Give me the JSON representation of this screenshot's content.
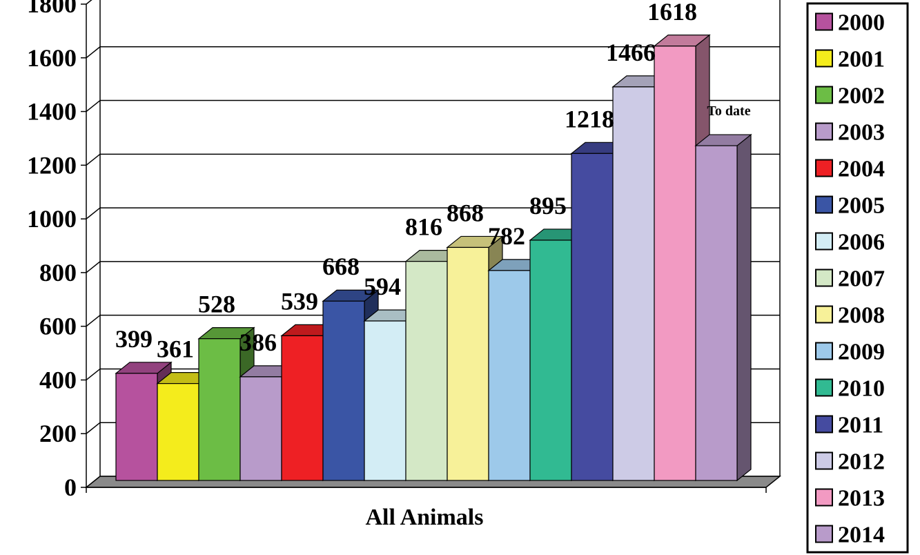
{
  "chart_data": {
    "type": "bar",
    "xlabel": "All Animals",
    "ylabel": "",
    "ylim": [
      0,
      1800
    ],
    "yticks": [
      0,
      200,
      400,
      600,
      800,
      1000,
      1200,
      1400,
      1600,
      1800
    ],
    "grid": true,
    "legend_position": "right",
    "categories": [
      "All Animals"
    ],
    "series": [
      {
        "name": "2000",
        "value": 399,
        "label": "399",
        "color": "#B6529E"
      },
      {
        "name": "2001",
        "value": 361,
        "label": "361",
        "color": "#F4EC1C"
      },
      {
        "name": "2002",
        "value": 528,
        "label": "528",
        "color": "#6CBD45"
      },
      {
        "name": "2003",
        "value": 386,
        "label": "386",
        "color": "#B89BCA"
      },
      {
        "name": "2004",
        "value": 539,
        "label": "539",
        "color": "#EE2024"
      },
      {
        "name": "2005",
        "value": 668,
        "label": "668",
        "color": "#3A55A5"
      },
      {
        "name": "2006",
        "value": 594,
        "label": "594",
        "color": "#D3EDF5"
      },
      {
        "name": "2007",
        "value": 816,
        "label": "816",
        "color": "#D4E8C6"
      },
      {
        "name": "2008",
        "value": 868,
        "label": "868",
        "color": "#F7F199"
      },
      {
        "name": "2009",
        "value": 782,
        "label": "782",
        "color": "#9DC9EA"
      },
      {
        "name": "2010",
        "value": 895,
        "label": "895",
        "color": "#31BA92"
      },
      {
        "name": "2011",
        "value": 1218,
        "label": "1218",
        "color": "#454BA0"
      },
      {
        "name": "2012",
        "value": 1466,
        "label": "1466",
        "color": "#CDCBE6"
      },
      {
        "name": "2013",
        "value": 1618,
        "label": "1618",
        "color": "#F29AC2"
      },
      {
        "name": "2014",
        "value": 1247,
        "label": "To date",
        "color": "#B89BCA"
      }
    ]
  }
}
